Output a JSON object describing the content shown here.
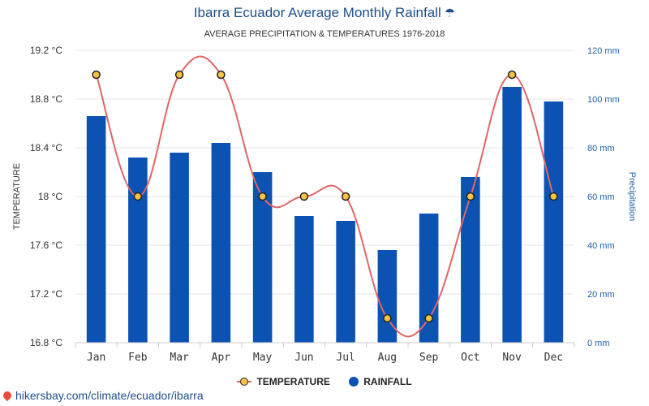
{
  "header": {
    "title": "Ibarra Ecuador Average Monthly Rainfall",
    "title_icon": "umbrella-icon",
    "subtitle": "AVERAGE PRECIPITATION & TEMPERATURES 1976-2018"
  },
  "legend": {
    "temperature_label": "TEMPERATURE",
    "rainfall_label": "RAINFALL"
  },
  "footer": {
    "link_text": "hikersbay.com/climate/ecuador/ibarra",
    "icon": "map-pin-icon"
  },
  "colors": {
    "bar": "#0b52b3",
    "line": "#e06666",
    "point_fill": "#f6c342",
    "title": "#1f4e8c",
    "right_axis": "#1f5fa8"
  },
  "chart_data": {
    "type": "bar",
    "categories": [
      "Jan",
      "Feb",
      "Mar",
      "Apr",
      "May",
      "Jun",
      "Jul",
      "Aug",
      "Sep",
      "Oct",
      "Nov",
      "Dec"
    ],
    "series": [
      {
        "name": "RAINFALL",
        "type": "bar",
        "axis": "right",
        "unit": "mm",
        "values": [
          93,
          76,
          78,
          82,
          70,
          52,
          50,
          38,
          53,
          68,
          105,
          99
        ]
      },
      {
        "name": "TEMPERATURE",
        "type": "line",
        "axis": "left",
        "unit": "°C",
        "values": [
          19,
          18,
          19,
          19,
          18,
          18,
          18,
          17,
          17,
          18,
          19,
          18
        ]
      }
    ],
    "ylabel_left": "TEMPERATURE",
    "ylabel_right": "Precipitation",
    "ylim_left": [
      16.8,
      19.2
    ],
    "ylim_right": [
      0,
      120
    ],
    "yticks_left": [
      "16.8 °C",
      "17.2 °C",
      "17.6 °C",
      "18 °C",
      "18.4 °C",
      "18.8 °C",
      "19.2 °C"
    ],
    "yticks_right": [
      "0 mm",
      "20 mm",
      "40 mm",
      "60 mm",
      "80 mm",
      "100 mm",
      "120 mm"
    ],
    "grid": true,
    "legend_position": "bottom"
  }
}
